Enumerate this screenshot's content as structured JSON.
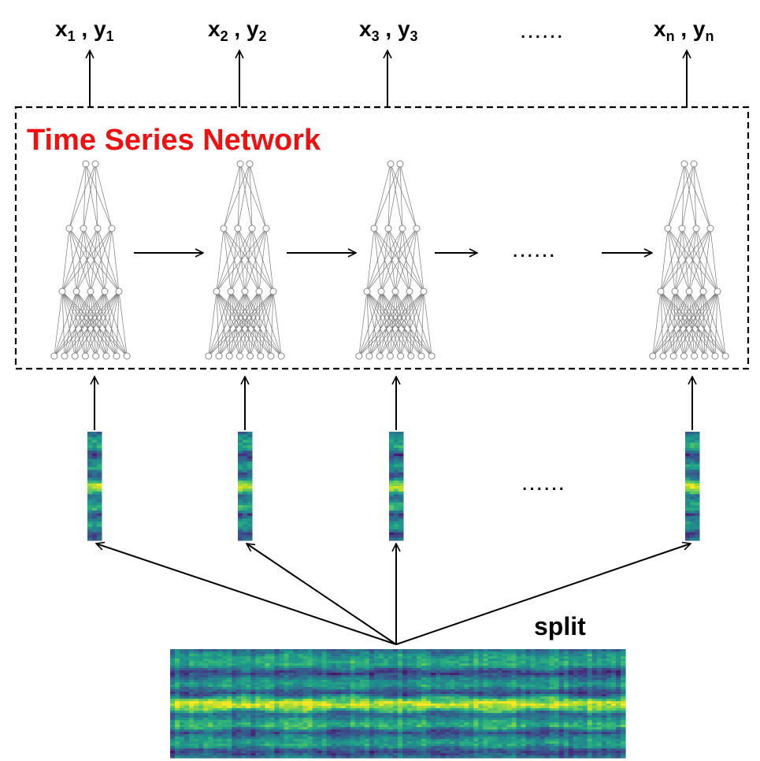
{
  "title": "Time Series Network",
  "title_color": "#ee1111",
  "outputs": [
    {
      "x": "x",
      "xsub": "1",
      "sep": " , ",
      "y": "y",
      "ysub": "1"
    },
    {
      "x": "x",
      "xsub": "2",
      "sep": " , ",
      "y": "y",
      "ysub": "2"
    },
    {
      "x": "x",
      "xsub": "3",
      "sep": " , ",
      "y": "y",
      "ysub": "3"
    },
    {
      "x": "x",
      "xsub": "n",
      "sep": " , ",
      "y": "y",
      "ysub": "n"
    }
  ],
  "ellipsis_outputs": "......",
  "ellipsis_network": "......",
  "ellipsis_slices": "......",
  "split_label": "split",
  "network_layers": [
    8,
    5,
    4,
    2
  ],
  "network_count": 4,
  "colormap": "viridis",
  "colors": {
    "box_border": "#000000",
    "neuron_stroke": "#888888",
    "edge": "#7a7a7a",
    "arrow": "#000000"
  }
}
